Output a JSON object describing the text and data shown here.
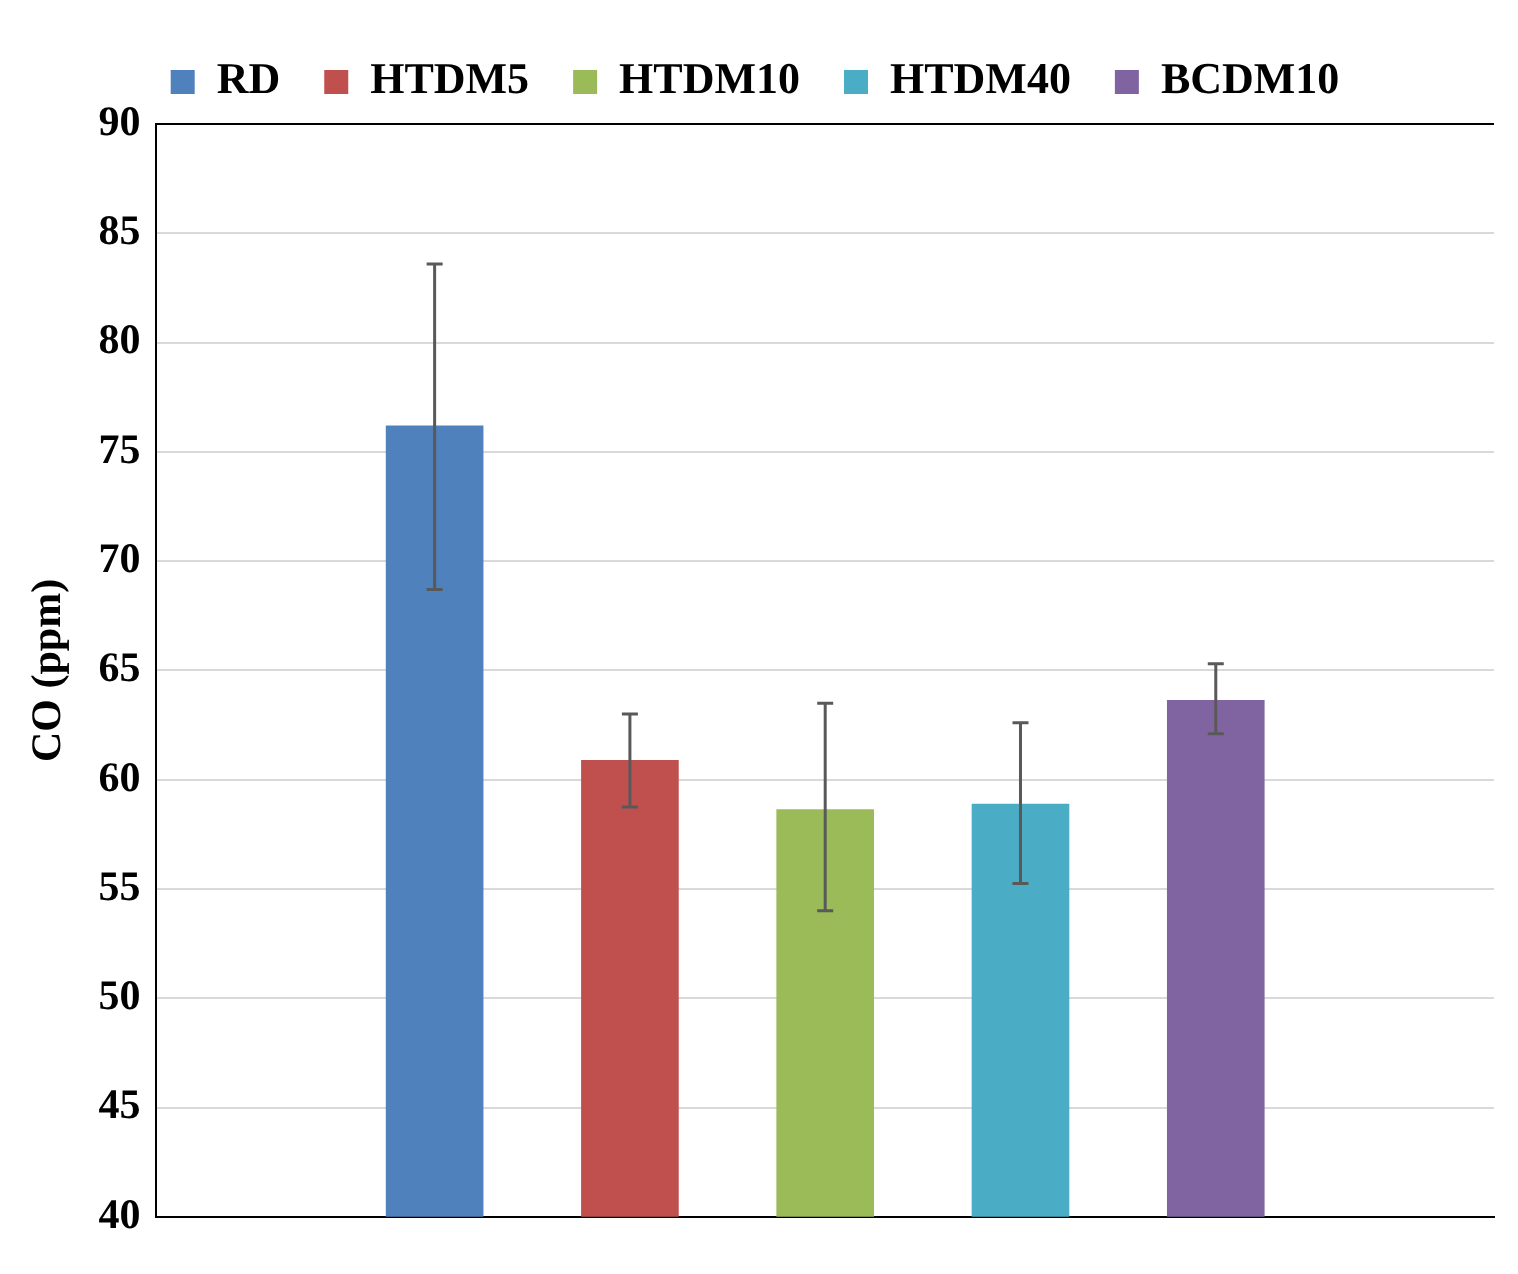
{
  "chart_data": {
    "type": "bar",
    "ylabel": "CO (ppm)",
    "categories": [
      null
    ],
    "series": [
      {
        "name": "RD",
        "color": "#4f81bd",
        "values": [
          76.2
        ],
        "errors": [
          [
            68.7,
            83.6
          ]
        ]
      },
      {
        "name": "HTDM5",
        "color": "#c0504d",
        "values": [
          60.9
        ],
        "errors": [
          [
            58.75,
            63.0
          ]
        ]
      },
      {
        "name": "HTDM10",
        "color": "#9bbb59",
        "values": [
          58.65
        ],
        "errors": [
          [
            54.0,
            63.5
          ]
        ]
      },
      {
        "name": "HTDM40",
        "color": "#4bacc6",
        "values": [
          58.9
        ],
        "errors": [
          [
            55.25,
            62.6
          ]
        ]
      },
      {
        "name": "BCDM10",
        "color": "#8064a2",
        "values": [
          63.65
        ],
        "errors": [
          [
            62.1,
            65.3
          ]
        ]
      }
    ],
    "ylim": [
      40,
      90
    ],
    "yticks": [
      40,
      45,
      50,
      55,
      60,
      65,
      70,
      75,
      80,
      85,
      90
    ],
    "grid": "y",
    "legend": "top"
  }
}
